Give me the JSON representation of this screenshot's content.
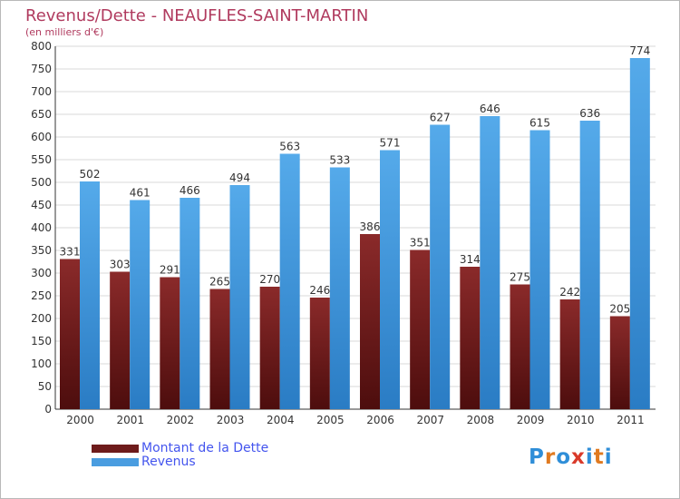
{
  "title": "Revenus/Dette - NEAUFLES-SAINT-MARTIN",
  "subtitle": "(en milliers d'€)",
  "colors": {
    "debt": "#6e1b1b",
    "revenue": "#4a9de0",
    "title": "#b03a5e",
    "grid": "#d8d8d8"
  },
  "logo": {
    "text": "Proxiti",
    "letters": [
      "P",
      "r",
      "o",
      "x",
      "i",
      "t",
      "i"
    ],
    "letter_colors": [
      "#2f8ed8",
      "#e07a20",
      "#2f8ed8",
      "#d93a2a",
      "#2f8ed8",
      "#e07a20",
      "#2f8ed8"
    ]
  },
  "chart_data": {
    "type": "bar",
    "title": "Revenus/Dette - NEAUFLES-SAINT-MARTIN",
    "subtitle": "(en milliers d'€)",
    "xlabel": "",
    "ylabel": "",
    "categories": [
      "2000",
      "2001",
      "2002",
      "2003",
      "2004",
      "2005",
      "2006",
      "2007",
      "2008",
      "2009",
      "2010",
      "2011"
    ],
    "series": [
      {
        "name": "Montant de la Dette",
        "values": [
          331,
          303,
          291,
          265,
          270,
          246,
          386,
          351,
          314,
          275,
          242,
          205
        ]
      },
      {
        "name": "Revenus",
        "values": [
          502,
          461,
          466,
          494,
          563,
          533,
          571,
          627,
          646,
          615,
          636,
          774
        ]
      }
    ],
    "ylim": [
      0,
      800
    ],
    "yticks": [
      0,
      50,
      100,
      150,
      200,
      250,
      300,
      350,
      400,
      450,
      500,
      550,
      600,
      650,
      700,
      750,
      800
    ],
    "grid": true,
    "legend_position": "bottom-left",
    "data_labels": true
  }
}
